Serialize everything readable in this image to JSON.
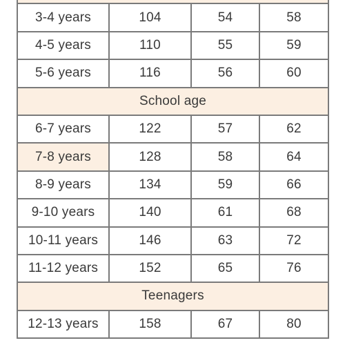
{
  "colors": {
    "section_bg": "#fcefe2",
    "border": "#7a7a7a",
    "text": "#3a3a3a"
  },
  "rows": [
    {
      "type": "section",
      "label": ""
    },
    {
      "type": "data",
      "cells": [
        "3-4 years",
        "104",
        "54",
        "58"
      ]
    },
    {
      "type": "data",
      "cells": [
        "4-5 years",
        "110",
        "55",
        "59"
      ]
    },
    {
      "type": "data",
      "cells": [
        "5-6 years",
        "116",
        "56",
        "60"
      ]
    },
    {
      "type": "section",
      "label": "School age"
    },
    {
      "type": "data",
      "cells": [
        "6-7 years",
        "122",
        "57",
        "62"
      ]
    },
    {
      "type": "data",
      "cells": [
        "7-8 years",
        "128",
        "58",
        "64"
      ],
      "highlight_first": true
    },
    {
      "type": "data",
      "cells": [
        "8-9 years",
        "134",
        "59",
        "66"
      ]
    },
    {
      "type": "data",
      "cells": [
        "9-10 years",
        "140",
        "61",
        "68"
      ]
    },
    {
      "type": "data",
      "cells": [
        "10-11 years",
        "146",
        "63",
        "72"
      ]
    },
    {
      "type": "data",
      "cells": [
        "11-12 years",
        "152",
        "65",
        "76"
      ]
    },
    {
      "type": "section",
      "label": "Teenagers"
    },
    {
      "type": "data",
      "cells": [
        "12-13 years",
        "158",
        "67",
        "80"
      ]
    }
  ]
}
